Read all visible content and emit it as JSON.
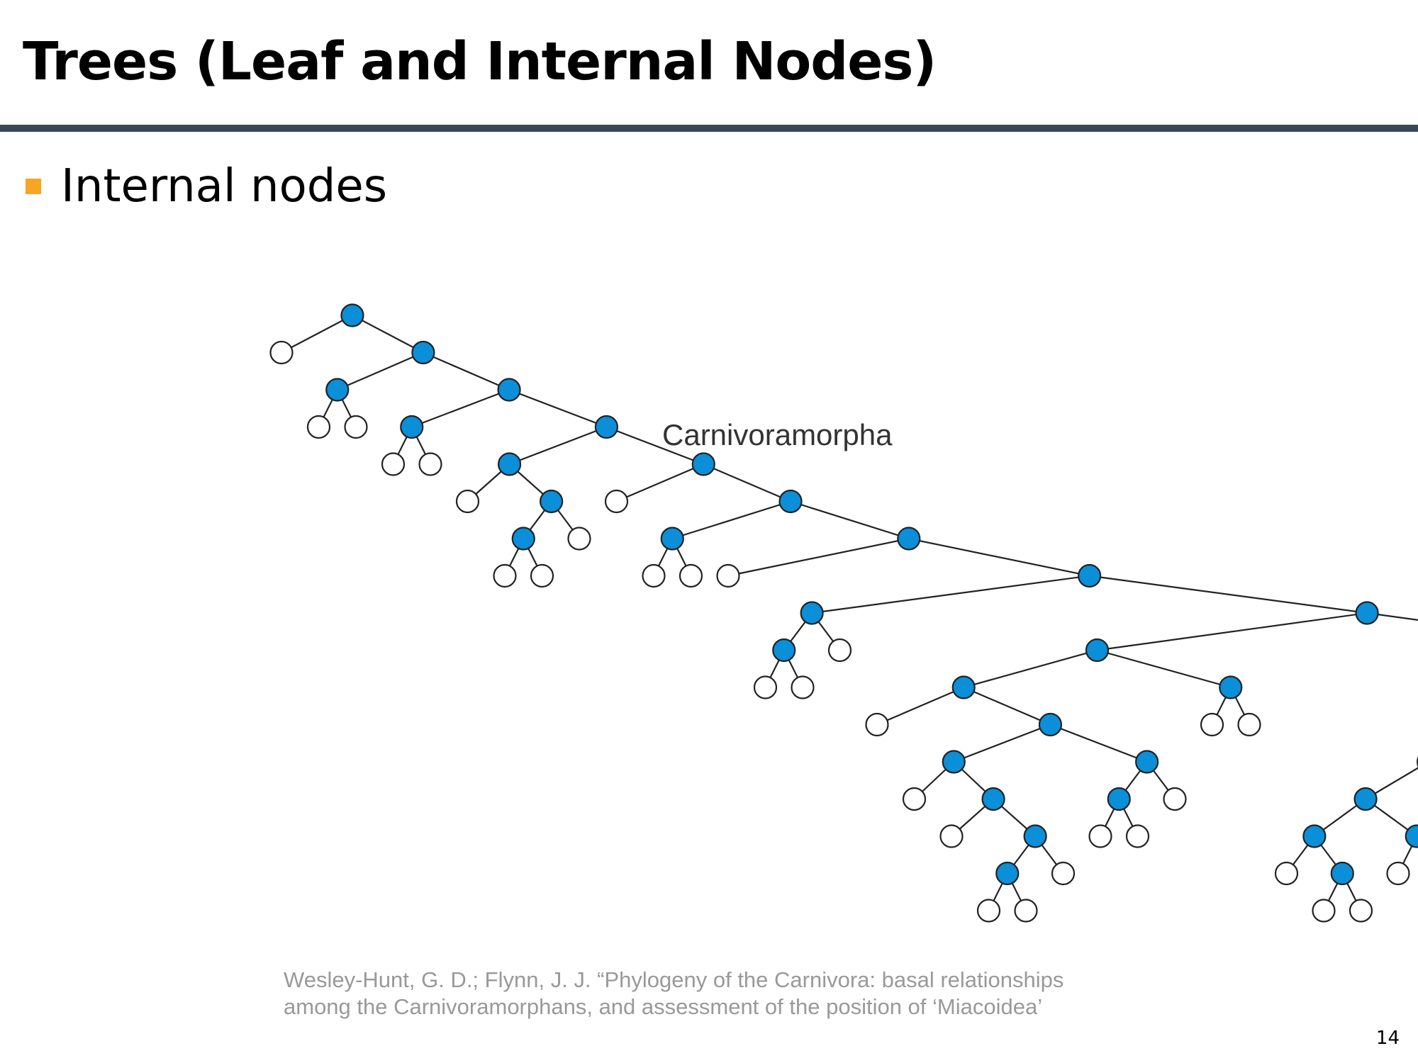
{
  "slide": {
    "title": "Trees (Leaf and Internal Nodes)",
    "bullet": "Internal nodes",
    "page_number": "14"
  },
  "diagram": {
    "clade_label": "Carnivoramorpha",
    "colors": {
      "internal_node": "#0a8fd8",
      "leaf_node": "#ffffff",
      "edge": "#222222",
      "bullet": "#f6a623",
      "rule": "#3a4754"
    },
    "tree": {
      "c": [
        {},
        {
          "c": [
            {
              "c": [
                {},
                {}
              ]
            },
            {
              "c": [
                {
                  "c": [
                    {},
                    {}
                  ]
                },
                {
                  "c": [
                    {
                      "c": [
                        {},
                        {
                          "c": [
                            {
                              "c": [
                                {},
                                {}
                              ]
                            },
                            {}
                          ]
                        }
                      ]
                    },
                    {
                      "c": [
                        {},
                        {
                          "c": [
                            {
                              "c": [
                                {},
                                {}
                              ]
                            },
                            {
                              "c": [
                                {},
                                {
                                  "c": [
                                    {
                                      "c": [
                                        {
                                          "c": [
                                            {},
                                            {}
                                          ]
                                        },
                                        {}
                                      ]
                                    },
                                    {
                                      "c": [
                                        {
                                          "c": [
                                            {
                                              "c": [
                                                {},
                                                {
                                                  "c": [
                                                    {
                                                      "c": [
                                                        {},
                                                        {
                                                          "c": [
                                                            {},
                                                            {
                                                              "c": [
                                                                {
                                                                  "c": [
                                                                    {},
                                                                    {}
                                                                  ]
                                                                },
                                                                {}
                                                              ]
                                                            }
                                                          ]
                                                        }
                                                      ]
                                                    },
                                                    {
                                                      "c": [
                                                        {
                                                          "c": [
                                                            {},
                                                            {}
                                                          ]
                                                        },
                                                        {}
                                                      ]
                                                    }
                                                  ]
                                                }
                                              ]
                                            },
                                            {
                                              "c": [
                                                {},
                                                {}
                                              ]
                                            }
                                          ]
                                        },
                                        {
                                          "c": [
                                            {
                                              "c": [
                                                {
                                                  "c": [
                                                    {
                                                      "c": [
                                                        {
                                                          "c": [
                                                            {
                                                              "c": [
                                                                {},
                                                                {
                                                                  "c": [
                                                                    {},
                                                                    {}
                                                                  ]
                                                                }
                                                              ]
                                                            },
                                                            {
                                                              "c": [
                                                                {},
                                                                {}
                                                              ]
                                                            }
                                                          ]
                                                        },
                                                        {
                                                          "c": [
                                                            {},
                                                            {}
                                                          ]
                                                        }
                                                      ]
                                                    },
                                                    {}
                                                  ]
                                                },
                                                {
                                                  "c": [
                                                    {
                                                      "c": [
                                                        {},
                                                        {}
                                                      ]
                                                    },
                                                    {}
                                                  ]
                                                }
                                              ]
                                            },
                                            {
                                              "c": [
                                                {},
                                                {}
                                              ]
                                            }
                                          ]
                                        }
                                      ]
                                    }
                                  ]
                                }
                              ]
                            }
                          ]
                        }
                      ]
                    }
                  ]
                }
              ]
            }
          ]
        }
      ]
    }
  },
  "citation": {
    "line1": "Wesley-Hunt, G. D.; Flynn, J. J. “Phylogeny of the Carnivora: basal relationships",
    "line2": "among the Carnivoramorphans, and assessment of the position of ‘Miacoidea’"
  }
}
